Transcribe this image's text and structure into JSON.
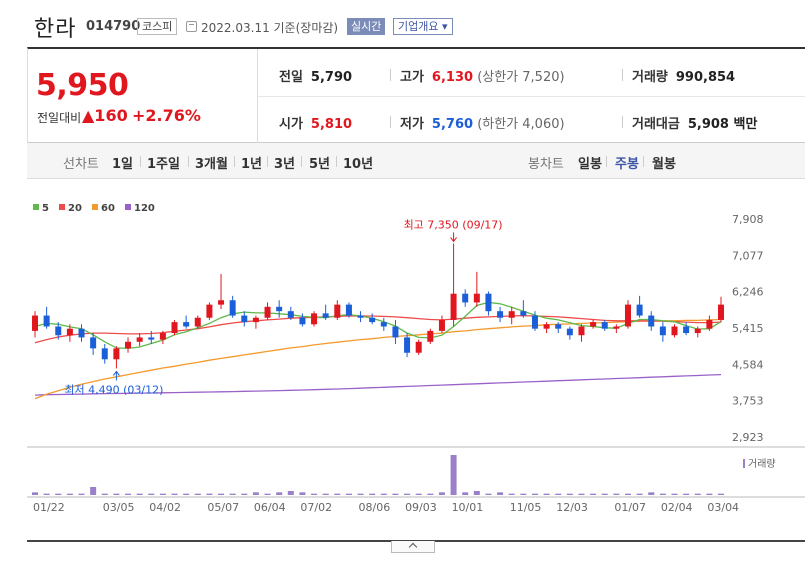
{
  "header": {
    "name": "한라",
    "code": "014790",
    "market": "코스피",
    "date": "2022.03.11 기준(장마감)",
    "live_label": "실시간",
    "overview_label": "기업개요 ▾"
  },
  "quote": {
    "price": "5,950",
    "diff_label": "전일대비",
    "diff": "▲160",
    "rate": "+2.76%",
    "prev": {
      "label": "전일",
      "value": "5,790"
    },
    "high": {
      "label": "고가",
      "value": "6,130",
      "note": "(상한가 7,520)"
    },
    "volume": {
      "label": "거래량",
      "value": "990,854"
    },
    "open": {
      "label": "시가",
      "value": "5,810"
    },
    "low": {
      "label": "저가",
      "value": "5,760",
      "note": "(하한가 4,060)"
    },
    "amount": {
      "label": "거래대금",
      "value": "5,908 백만"
    }
  },
  "period_bar": {
    "line_chart_label": "선차트",
    "line_periods": [
      "1일",
      "1주일",
      "3개월",
      "1년",
      "3년",
      "5년",
      "10년"
    ],
    "candle_label": "봉차트",
    "candle_periods": [
      "일봉",
      "주봉",
      "월봉"
    ],
    "selected": "주봉"
  },
  "colors": {
    "up": "#e0171f",
    "down": "#1a5fd8",
    "ma5": "#5fb94b",
    "ma20": "#ee4b4b",
    "ma60": "#f39a2d",
    "ma120": "#9a62c9",
    "volume": "#9a7fc9"
  },
  "chart_data": {
    "type": "candlestick",
    "legend": [
      "5",
      "20",
      "60",
      "120"
    ],
    "y_ticks": [
      "7,908",
      "7,077",
      "6,246",
      "5,415",
      "4,584",
      "3,753",
      "2,923"
    ],
    "ylim": [
      2923,
      7908
    ],
    "x_labels": [
      "01/22",
      "03/05",
      "04/02",
      "05/07",
      "06/04",
      "07/02",
      "08/06",
      "09/03",
      "10/01",
      "11/05",
      "12/03",
      "01/07",
      "02/04",
      "03/04"
    ],
    "volume_label": "거래량",
    "max_annotation": "최고 7,350 (09/17)",
    "min_annotation": "최저 4,490 (03/12)",
    "candles": [
      [
        5350,
        5800,
        5200,
        5700
      ],
      [
        5700,
        5900,
        5400,
        5450
      ],
      [
        5450,
        5550,
        5150,
        5250
      ],
      [
        5250,
        5500,
        5100,
        5400
      ],
      [
        5400,
        5500,
        5100,
        5200
      ],
      [
        5200,
        5300,
        4800,
        4950
      ],
      [
        4950,
        5050,
        4600,
        4700
      ],
      [
        4700,
        5000,
        4490,
        4950
      ],
      [
        4950,
        5200,
        4850,
        5100
      ],
      [
        5100,
        5300,
        5000,
        5200
      ],
      [
        5200,
        5350,
        5050,
        5150
      ],
      [
        5150,
        5350,
        5050,
        5300
      ],
      [
        5300,
        5600,
        5250,
        5550
      ],
      [
        5550,
        5700,
        5400,
        5450
      ],
      [
        5450,
        5700,
        5400,
        5650
      ],
      [
        5650,
        6000,
        5600,
        5950
      ],
      [
        5950,
        6650,
        5850,
        6050
      ],
      [
        6050,
        6150,
        5650,
        5700
      ],
      [
        5700,
        5800,
        5450,
        5550
      ],
      [
        5550,
        5700,
        5400,
        5650
      ],
      [
        5650,
        6000,
        5600,
        5900
      ],
      [
        5900,
        6050,
        5650,
        5800
      ],
      [
        5800,
        5900,
        5600,
        5650
      ],
      [
        5650,
        5750,
        5450,
        5500
      ],
      [
        5500,
        5800,
        5450,
        5750
      ],
      [
        5750,
        5950,
        5600,
        5650
      ],
      [
        5650,
        6050,
        5600,
        5950
      ],
      [
        5950,
        6000,
        5650,
        5700
      ],
      [
        5700,
        5800,
        5550,
        5650
      ],
      [
        5650,
        5750,
        5500,
        5550
      ],
      [
        5550,
        5650,
        5350,
        5450
      ],
      [
        5450,
        5600,
        5050,
        5200
      ],
      [
        5200,
        5300,
        4750,
        4850
      ],
      [
        4850,
        5150,
        4800,
        5100
      ],
      [
        5100,
        5400,
        5050,
        5350
      ],
      [
        5350,
        5700,
        5300,
        5600
      ],
      [
        5600,
        7350,
        5450,
        6200
      ],
      [
        6200,
        6300,
        5900,
        6000
      ],
      [
        6000,
        6700,
        5900,
        6200
      ],
      [
        6200,
        6250,
        5700,
        5800
      ],
      [
        5800,
        5900,
        5550,
        5650
      ],
      [
        5650,
        5900,
        5500,
        5800
      ],
      [
        5800,
        6050,
        5650,
        5700
      ],
      [
        5700,
        5800,
        5350,
        5400
      ],
      [
        5400,
        5550,
        5300,
        5500
      ],
      [
        5500,
        5550,
        5300,
        5400
      ],
      [
        5400,
        5450,
        5150,
        5250
      ],
      [
        5250,
        5500,
        5100,
        5450
      ],
      [
        5450,
        5600,
        5400,
        5550
      ],
      [
        5550,
        5600,
        5350,
        5400
      ],
      [
        5400,
        5500,
        5300,
        5450
      ],
      [
        5450,
        6050,
        5400,
        5950
      ],
      [
        5950,
        6150,
        5650,
        5700
      ],
      [
        5700,
        5800,
        5350,
        5450
      ],
      [
        5450,
        5550,
        5100,
        5250
      ],
      [
        5250,
        5500,
        5200,
        5450
      ],
      [
        5450,
        5550,
        5250,
        5300
      ],
      [
        5300,
        5450,
        5200,
        5400
      ],
      [
        5400,
        5700,
        5350,
        5600
      ],
      [
        5600,
        6130,
        5550,
        5950
      ]
    ],
    "volume": [
      2,
      1,
      1,
      1,
      1,
      6,
      1,
      1,
      1,
      1,
      1,
      1,
      1,
      1,
      1,
      1,
      1,
      1,
      1,
      2,
      1,
      2,
      3,
      2,
      1,
      1,
      1,
      1,
      1,
      1,
      1,
      1,
      1,
      1,
      1,
      2,
      30,
      2,
      3,
      1,
      2,
      1,
      1,
      1,
      1,
      1,
      1,
      1,
      1,
      1,
      1,
      1,
      1,
      2,
      1,
      1,
      1,
      1,
      1,
      1
    ],
    "ma5": [
      5450,
      5520,
      5500,
      5440,
      5400,
      5260,
      5100,
      4960,
      4950,
      4980,
      5060,
      5140,
      5260,
      5330,
      5420,
      5520,
      5650,
      5740,
      5780,
      5760,
      5760,
      5740,
      5720,
      5680,
      5660,
      5650,
      5700,
      5720,
      5690,
      5640,
      5560,
      5460,
      5300,
      5200,
      5190,
      5250,
      5450,
      5680,
      5930,
      6000,
      5970,
      5890,
      5800,
      5710,
      5640,
      5600,
      5540,
      5470,
      5450,
      5420,
      5410,
      5520,
      5610,
      5610,
      5580,
      5560,
      5470,
      5390,
      5400,
      5560
    ],
    "ma20": [
      5080,
      5150,
      5210,
      5250,
      5280,
      5300,
      5300,
      5290,
      5280,
      5280,
      5290,
      5310,
      5340,
      5370,
      5400,
      5440,
      5490,
      5530,
      5560,
      5580,
      5600,
      5620,
      5640,
      5650,
      5660,
      5670,
      5680,
      5690,
      5690,
      5690,
      5680,
      5670,
      5650,
      5630,
      5610,
      5600,
      5620,
      5640,
      5660,
      5670,
      5680,
      5690,
      5700,
      5690,
      5680,
      5670,
      5650,
      5630,
      5610,
      5590,
      5580,
      5580,
      5580,
      5580,
      5570,
      5560,
      5550,
      5540,
      5540,
      5550
    ],
    "ma60": [
      3800,
      3900,
      3980,
      4060,
      4130,
      4190,
      4250,
      4300,
      4350,
      4400,
      4450,
      4500,
      4540,
      4590,
      4630,
      4680,
      4720,
      4760,
      4800,
      4840,
      4880,
      4920,
      4960,
      4990,
      5030,
      5060,
      5090,
      5120,
      5150,
      5170,
      5200,
      5220,
      5240,
      5260,
      5280,
      5300,
      5330,
      5350,
      5380,
      5400,
      5420,
      5440,
      5460,
      5470,
      5490,
      5500,
      5510,
      5520,
      5530,
      5540,
      5550,
      5560,
      5570,
      5570,
      5580,
      5580,
      5590,
      5590,
      5600,
      5610
    ],
    "ma120": [
      3880,
      3890,
      3895,
      3900,
      3905,
      3910,
      3915,
      3918,
      3922,
      3926,
      3930,
      3934,
      3938,
      3942,
      3947,
      3952,
      3957,
      3962,
      3967,
      3972,
      3977,
      3983,
      3990,
      3997,
      4005,
      4013,
      4021,
      4030,
      4040,
      4050,
      4060,
      4070,
      4080,
      4090,
      4100,
      4110,
      4120,
      4130,
      4140,
      4150,
      4160,
      4170,
      4180,
      4190,
      4200,
      4210,
      4220,
      4230,
      4240,
      4250,
      4260,
      4270,
      4280,
      4290,
      4300,
      4310,
      4320,
      4330,
      4340,
      4350
    ]
  }
}
